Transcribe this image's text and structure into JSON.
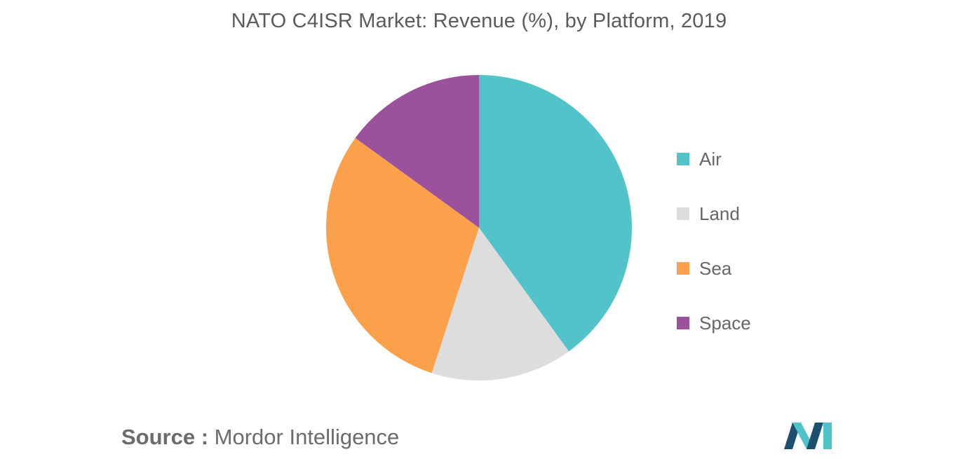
{
  "chart_data": {
    "type": "pie",
    "title": "NATO C4ISR Market: Revenue (%), by Platform, 2019",
    "categories": [
      "Air",
      "Land",
      "Sea",
      "Space"
    ],
    "values": [
      40,
      15,
      30,
      15
    ],
    "colors": [
      "#52c4c9",
      "#dddddd",
      "#fba04b",
      "#9b519c"
    ],
    "legend_position": "right",
    "start_angle_deg": 0,
    "direction": "clockwise"
  },
  "source": {
    "label": "Source :",
    "text": "Mordor Intelligence"
  },
  "logo": {
    "name": "mordor-intelligence-logo",
    "colors": [
      "#1f4f6e",
      "#4ec3c8"
    ]
  }
}
